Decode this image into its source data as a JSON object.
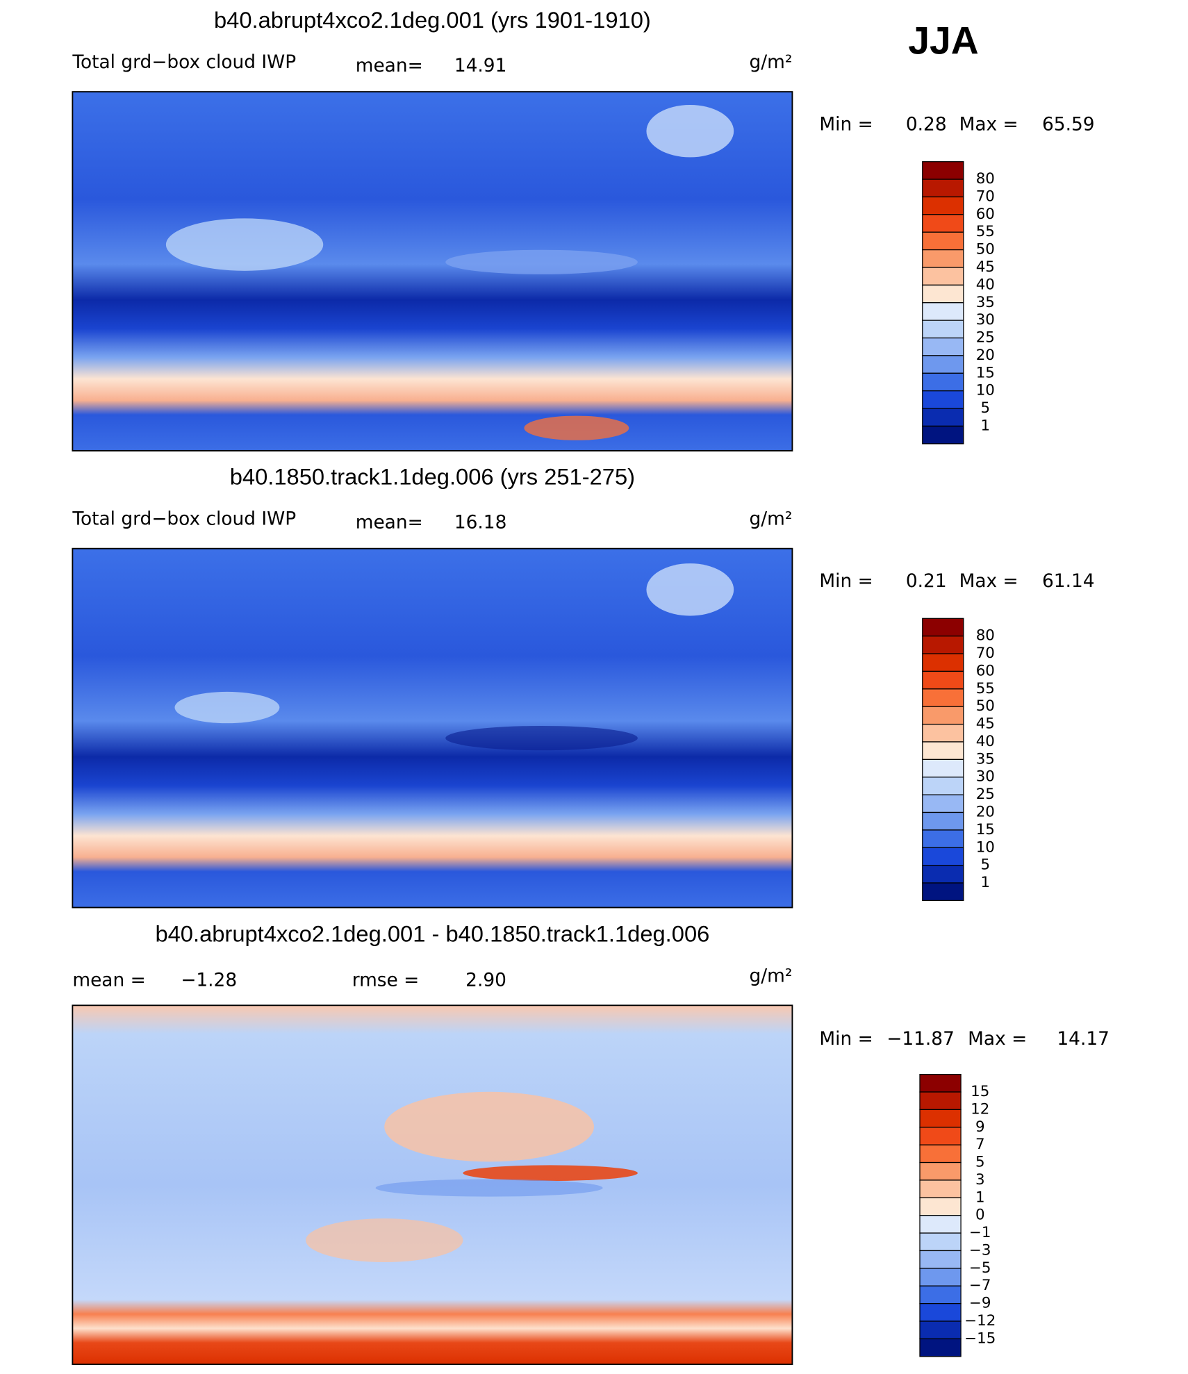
{
  "season": "JJA",
  "panels": [
    {
      "title": "b40.abrupt4xco2.1deg.001 (yrs 1901-1910)",
      "variable": "Total grd−box cloud IWP",
      "mean_label": "mean=",
      "mean": "14.91",
      "units": "g/m²",
      "min_label": "Min =",
      "min": "0.28",
      "max_label": "Max =",
      "max": "65.59",
      "colorbar": {
        "levels": [
          "80",
          "70",
          "60",
          "55",
          "50",
          "45",
          "40",
          "35",
          "30",
          "25",
          "20",
          "15",
          "10",
          "5",
          "1"
        ],
        "colors": [
          "#8c0000",
          "#b81800",
          "#dc3000",
          "#f04a18",
          "#f87038",
          "#f99a6a",
          "#fcc2a0",
          "#fde6d2",
          "#dde9fb",
          "#bcd4f8",
          "#98b8f4",
          "#6e98ee",
          "#3c6ee6",
          "#1a48da",
          "#0a2cb0",
          "#001480"
        ]
      }
    },
    {
      "title": "b40.1850.track1.1deg.006 (yrs 251-275)",
      "variable": "Total grd−box cloud IWP",
      "mean_label": "mean=",
      "mean": "16.18",
      "units": "g/m²",
      "min_label": "Min =",
      "min": "0.21",
      "max_label": "Max =",
      "max": "61.14",
      "colorbar": {
        "levels": [
          "80",
          "70",
          "60",
          "55",
          "50",
          "45",
          "40",
          "35",
          "30",
          "25",
          "20",
          "15",
          "10",
          "5",
          "1"
        ],
        "colors": [
          "#8c0000",
          "#b81800",
          "#dc3000",
          "#f04a18",
          "#f87038",
          "#f99a6a",
          "#fcc2a0",
          "#fde6d2",
          "#dde9fb",
          "#bcd4f8",
          "#98b8f4",
          "#6e98ee",
          "#3c6ee6",
          "#1a48da",
          "#0a2cb0",
          "#001480"
        ]
      }
    },
    {
      "title": "b40.abrupt4xco2.1deg.001 - b40.1850.track1.1deg.006",
      "mean_label": "mean =",
      "mean": "−1.28",
      "rmse_label": "rmse =",
      "rmse": "2.90",
      "units": "g/m²",
      "min_label": "Min =",
      "min": "−11.87",
      "max_label": "Max =",
      "max": "14.17",
      "colorbar": {
        "levels": [
          "15",
          "12",
          "9",
          "7",
          "5",
          "3",
          "1",
          "0",
          "−1",
          "−3",
          "−5",
          "−7",
          "−9",
          "−12",
          "−15"
        ],
        "colors": [
          "#8c0000",
          "#b81800",
          "#dc3000",
          "#f04a18",
          "#f87038",
          "#f99a6a",
          "#fcc2a0",
          "#fde6d2",
          "#dde9fb",
          "#bcd4f8",
          "#98b8f4",
          "#6e98ee",
          "#3c6ee6",
          "#1a48da",
          "#0a2cb0",
          "#001480"
        ]
      }
    }
  ]
}
